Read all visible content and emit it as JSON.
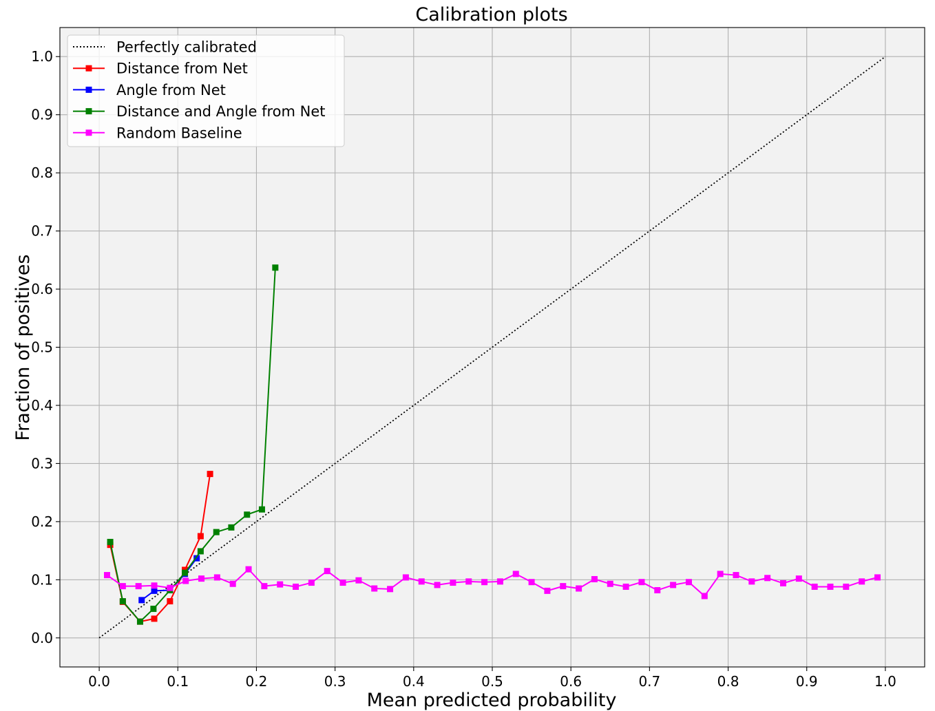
{
  "chart_data": {
    "type": "line",
    "title": "Calibration plots",
    "xlabel": "Mean predicted probability",
    "ylabel": "Fraction of positives",
    "xlim": [
      -0.05,
      1.05
    ],
    "ylim": [
      -0.05,
      1.05
    ],
    "x_ticks": [
      "0.0",
      "0.1",
      "0.2",
      "0.3",
      "0.4",
      "0.5",
      "0.6",
      "0.7",
      "0.8",
      "0.9",
      "1.0"
    ],
    "y_ticks": [
      "0.0",
      "0.1",
      "0.2",
      "0.3",
      "0.4",
      "0.5",
      "0.6",
      "0.7",
      "0.8",
      "0.9",
      "1.0"
    ],
    "grid": true,
    "legend_position": "top-left",
    "plot_background": "#f2f2f2",
    "series": [
      {
        "name": "Perfectly calibrated",
        "color": "#000000",
        "style": "dotted",
        "marker": "none",
        "x": [
          0.0,
          1.0
        ],
        "y": [
          0.0,
          1.0
        ]
      },
      {
        "name": "Distance from Net",
        "color": "#ff0000",
        "style": "solid",
        "marker": "square",
        "x": [
          0.014,
          0.03,
          0.052,
          0.07,
          0.09,
          0.109,
          0.129,
          0.141
        ],
        "y": [
          0.16,
          0.062,
          0.028,
          0.033,
          0.063,
          0.117,
          0.175,
          0.282
        ]
      },
      {
        "name": "Angle from Net",
        "color": "#0000ff",
        "style": "solid",
        "marker": "square",
        "x": [
          0.054,
          0.07,
          0.09,
          0.109,
          0.124
        ],
        "y": [
          0.065,
          0.081,
          0.082,
          0.11,
          0.137
        ]
      },
      {
        "name": "Distance and Angle from Net",
        "color": "#008000",
        "style": "solid",
        "marker": "square",
        "x": [
          0.014,
          0.03,
          0.052,
          0.069,
          0.09,
          0.109,
          0.129,
          0.149,
          0.168,
          0.188,
          0.207,
          0.224
        ],
        "y": [
          0.165,
          0.063,
          0.028,
          0.05,
          0.082,
          0.112,
          0.149,
          0.182,
          0.19,
          0.212,
          0.221,
          0.637
        ]
      },
      {
        "name": "Random Baseline",
        "color": "#ff00ff",
        "style": "solid",
        "marker": "square",
        "x": [
          0.01,
          0.03,
          0.05,
          0.07,
          0.09,
          0.11,
          0.13,
          0.15,
          0.17,
          0.19,
          0.21,
          0.23,
          0.25,
          0.27,
          0.29,
          0.31,
          0.33,
          0.35,
          0.37,
          0.39,
          0.41,
          0.43,
          0.45,
          0.47,
          0.49,
          0.51,
          0.53,
          0.55,
          0.57,
          0.59,
          0.61,
          0.63,
          0.65,
          0.67,
          0.69,
          0.71,
          0.73,
          0.75,
          0.77,
          0.79,
          0.81,
          0.83,
          0.85,
          0.87,
          0.89,
          0.91,
          0.93,
          0.95,
          0.97,
          0.99
        ],
        "y": [
          0.108,
          0.089,
          0.089,
          0.09,
          0.086,
          0.098,
          0.102,
          0.104,
          0.093,
          0.118,
          0.089,
          0.092,
          0.088,
          0.095,
          0.115,
          0.095,
          0.099,
          0.085,
          0.084,
          0.104,
          0.097,
          0.091,
          0.095,
          0.097,
          0.096,
          0.097,
          0.11,
          0.096,
          0.081,
          0.089,
          0.085,
          0.101,
          0.093,
          0.088,
          0.096,
          0.082,
          0.091,
          0.096,
          0.072,
          0.11,
          0.108,
          0.097,
          0.103,
          0.094,
          0.102,
          0.088,
          0.088,
          0.088,
          0.097,
          0.104
        ]
      }
    ]
  }
}
